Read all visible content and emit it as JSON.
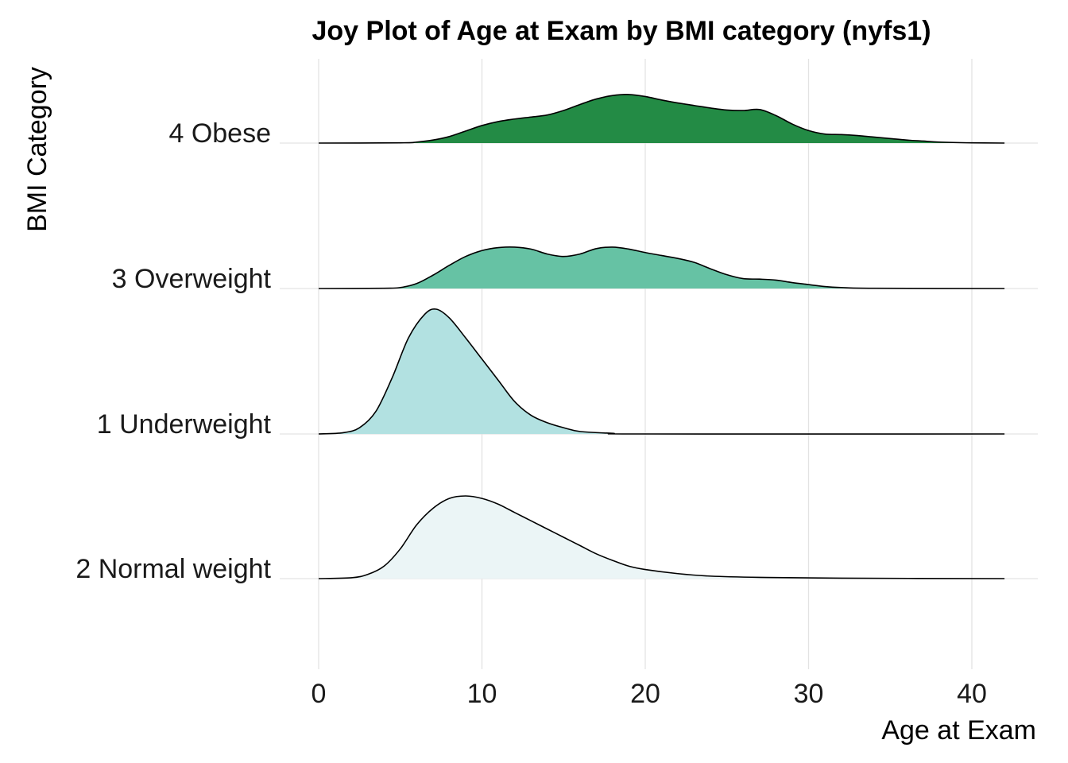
{
  "chart_data": {
    "type": "ridgeline",
    "title": "Joy Plot of Age at Exam by BMI category (nyfs1)",
    "xlabel": "Age at Exam",
    "ylabel": "BMI Category",
    "xlim": [
      0,
      42
    ],
    "x_ticks": [
      0,
      10,
      20,
      30,
      40
    ],
    "grid": true,
    "legend": "none",
    "categories": [
      "2 Normal weight",
      "1 Underweight",
      "3 Overweight",
      "4 Obese"
    ],
    "series": [
      {
        "name": "2 Normal weight",
        "color": "#ebf5f6",
        "density_relative": [
          [
            0,
            0
          ],
          [
            2,
            0.01
          ],
          [
            3,
            0.05
          ],
          [
            4,
            0.15
          ],
          [
            5,
            0.36
          ],
          [
            6,
            0.65
          ],
          [
            7,
            0.85
          ],
          [
            8,
            0.97
          ],
          [
            9,
            1.0
          ],
          [
            10,
            0.97
          ],
          [
            11,
            0.9
          ],
          [
            12,
            0.8
          ],
          [
            13,
            0.7
          ],
          [
            14,
            0.6
          ],
          [
            15,
            0.5
          ],
          [
            16,
            0.4
          ],
          [
            17,
            0.3
          ],
          [
            18,
            0.22
          ],
          [
            19,
            0.15
          ],
          [
            20,
            0.11
          ],
          [
            22,
            0.06
          ],
          [
            24,
            0.03
          ],
          [
            27,
            0.015
          ],
          [
            32,
            0.005
          ],
          [
            42,
            0
          ]
        ]
      },
      {
        "name": "1 Underweight",
        "color": "#b2e1e1",
        "density_relative": [
          [
            0,
            0
          ],
          [
            1.5,
            0.01
          ],
          [
            2.5,
            0.05
          ],
          [
            3.5,
            0.18
          ],
          [
            4.5,
            0.45
          ],
          [
            5.5,
            0.77
          ],
          [
            6.5,
            0.96
          ],
          [
            7.2,
            1.0
          ],
          [
            8,
            0.93
          ],
          [
            9,
            0.77
          ],
          [
            10,
            0.6
          ],
          [
            11,
            0.43
          ],
          [
            12,
            0.26
          ],
          [
            13,
            0.15
          ],
          [
            14,
            0.09
          ],
          [
            15,
            0.05
          ],
          [
            16,
            0.02
          ],
          [
            18,
            0.005
          ],
          [
            20,
            0
          ],
          [
            42,
            0
          ]
        ]
      },
      {
        "name": "3 Overweight",
        "color": "#66c2a4",
        "density_relative": [
          [
            0,
            0
          ],
          [
            4,
            0.005
          ],
          [
            5,
            0.02
          ],
          [
            6,
            0.1
          ],
          [
            7,
            0.27
          ],
          [
            8,
            0.47
          ],
          [
            9,
            0.65
          ],
          [
            10,
            0.77
          ],
          [
            11,
            0.83
          ],
          [
            12,
            0.84
          ],
          [
            13,
            0.8
          ],
          [
            14,
            0.7
          ],
          [
            15,
            0.65
          ],
          [
            16,
            0.7
          ],
          [
            17,
            0.81
          ],
          [
            18,
            0.84
          ],
          [
            19,
            0.8
          ],
          [
            20,
            0.73
          ],
          [
            21,
            0.67
          ],
          [
            22,
            0.61
          ],
          [
            23,
            0.53
          ],
          [
            24,
            0.4
          ],
          [
            25,
            0.28
          ],
          [
            26,
            0.2
          ],
          [
            27,
            0.19
          ],
          [
            28,
            0.17
          ],
          [
            29,
            0.12
          ],
          [
            30,
            0.08
          ],
          [
            31,
            0.04
          ],
          [
            32,
            0.02
          ],
          [
            34,
            0.005
          ],
          [
            42,
            0
          ]
        ]
      },
      {
        "name": "4 Obese",
        "color": "#238b45",
        "density_relative": [
          [
            0,
            0
          ],
          [
            5,
            0.005
          ],
          [
            6,
            0.02
          ],
          [
            7,
            0.06
          ],
          [
            8,
            0.13
          ],
          [
            9,
            0.24
          ],
          [
            10,
            0.35
          ],
          [
            11,
            0.43
          ],
          [
            12,
            0.48
          ],
          [
            13,
            0.52
          ],
          [
            14,
            0.56
          ],
          [
            15,
            0.65
          ],
          [
            16,
            0.77
          ],
          [
            17,
            0.88
          ],
          [
            18,
            0.95
          ],
          [
            19,
            0.97
          ],
          [
            20,
            0.93
          ],
          [
            21,
            0.86
          ],
          [
            22,
            0.8
          ],
          [
            23,
            0.75
          ],
          [
            24,
            0.7
          ],
          [
            25,
            0.66
          ],
          [
            26,
            0.65
          ],
          [
            27,
            0.67
          ],
          [
            28,
            0.55
          ],
          [
            29,
            0.38
          ],
          [
            30,
            0.25
          ],
          [
            31,
            0.18
          ],
          [
            32,
            0.17
          ],
          [
            33,
            0.15
          ],
          [
            34,
            0.12
          ],
          [
            35,
            0.09
          ],
          [
            36,
            0.06
          ],
          [
            37,
            0.04
          ],
          [
            38,
            0.02
          ],
          [
            40,
            0.005
          ],
          [
            42,
            0
          ]
        ]
      }
    ]
  }
}
